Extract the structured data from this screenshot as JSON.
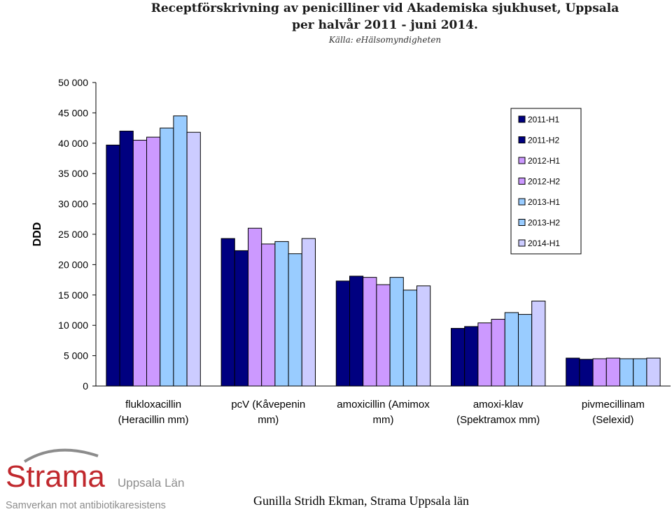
{
  "header": {
    "title_line1": "Receptförskrivning av penicilliner vid Akademiska sjukhuset, Uppsala",
    "title_line2": "per halvår 2011 - juni 2014.",
    "source": "Källa: eHälsomyndigheten"
  },
  "chart_data": {
    "type": "bar",
    "ylabel": "DDD",
    "ylim": [
      0,
      50000
    ],
    "yticks": [
      0,
      5000,
      10000,
      15000,
      20000,
      25000,
      30000,
      35000,
      40000,
      45000,
      50000
    ],
    "ytick_labels": [
      "0",
      "5 000",
      "10 000",
      "15 000",
      "20 000",
      "25 000",
      "30 000",
      "35 000",
      "40 000",
      "45 000",
      "50 000"
    ],
    "grid": false,
    "legend_position": "top-right",
    "categories": [
      [
        "flukloxacillin",
        "(Heracillin mm)"
      ],
      [
        "pcV (Kåvepenin",
        "mm)"
      ],
      [
        "amoxicillin (Amimox",
        "mm)"
      ],
      [
        "amoxi-klav",
        "(Spektramox mm)"
      ],
      [
        "pivmecillinam",
        "(Selexid)"
      ]
    ],
    "series": [
      {
        "name": "2011-H1",
        "color": "#000080",
        "values": [
          39700,
          24300,
          17300,
          9500,
          4600
        ]
      },
      {
        "name": "2011-H2",
        "color": "#000080",
        "values": [
          42000,
          22300,
          18100,
          9800,
          4400
        ]
      },
      {
        "name": "2012-H1",
        "color": "#cc99ff",
        "values": [
          40500,
          26000,
          17900,
          10400,
          4500
        ]
      },
      {
        "name": "2012-H2",
        "color": "#cc99ff",
        "values": [
          41000,
          23400,
          16700,
          11000,
          4600
        ]
      },
      {
        "name": "2013-H1",
        "color": "#99ccff",
        "values": [
          42500,
          23800,
          17900,
          12100,
          4500
        ]
      },
      {
        "name": "2013-H2",
        "color": "#99ccff",
        "values": [
          44500,
          21800,
          15800,
          11800,
          4500
        ]
      },
      {
        "name": "2014-H1",
        "color": "#ccccff",
        "values": [
          41800,
          24300,
          16500,
          14000,
          4600
        ]
      }
    ]
  },
  "logo": {
    "name": "Strama",
    "region": "Uppsala Län",
    "tagline": "Samverkan mot antibiotikaresistens",
    "color_red": "#c0282d",
    "color_gray": "#8c8c8c"
  },
  "footer": {
    "author": "Gunilla Stridh Ekman, Strama Uppsala län"
  }
}
